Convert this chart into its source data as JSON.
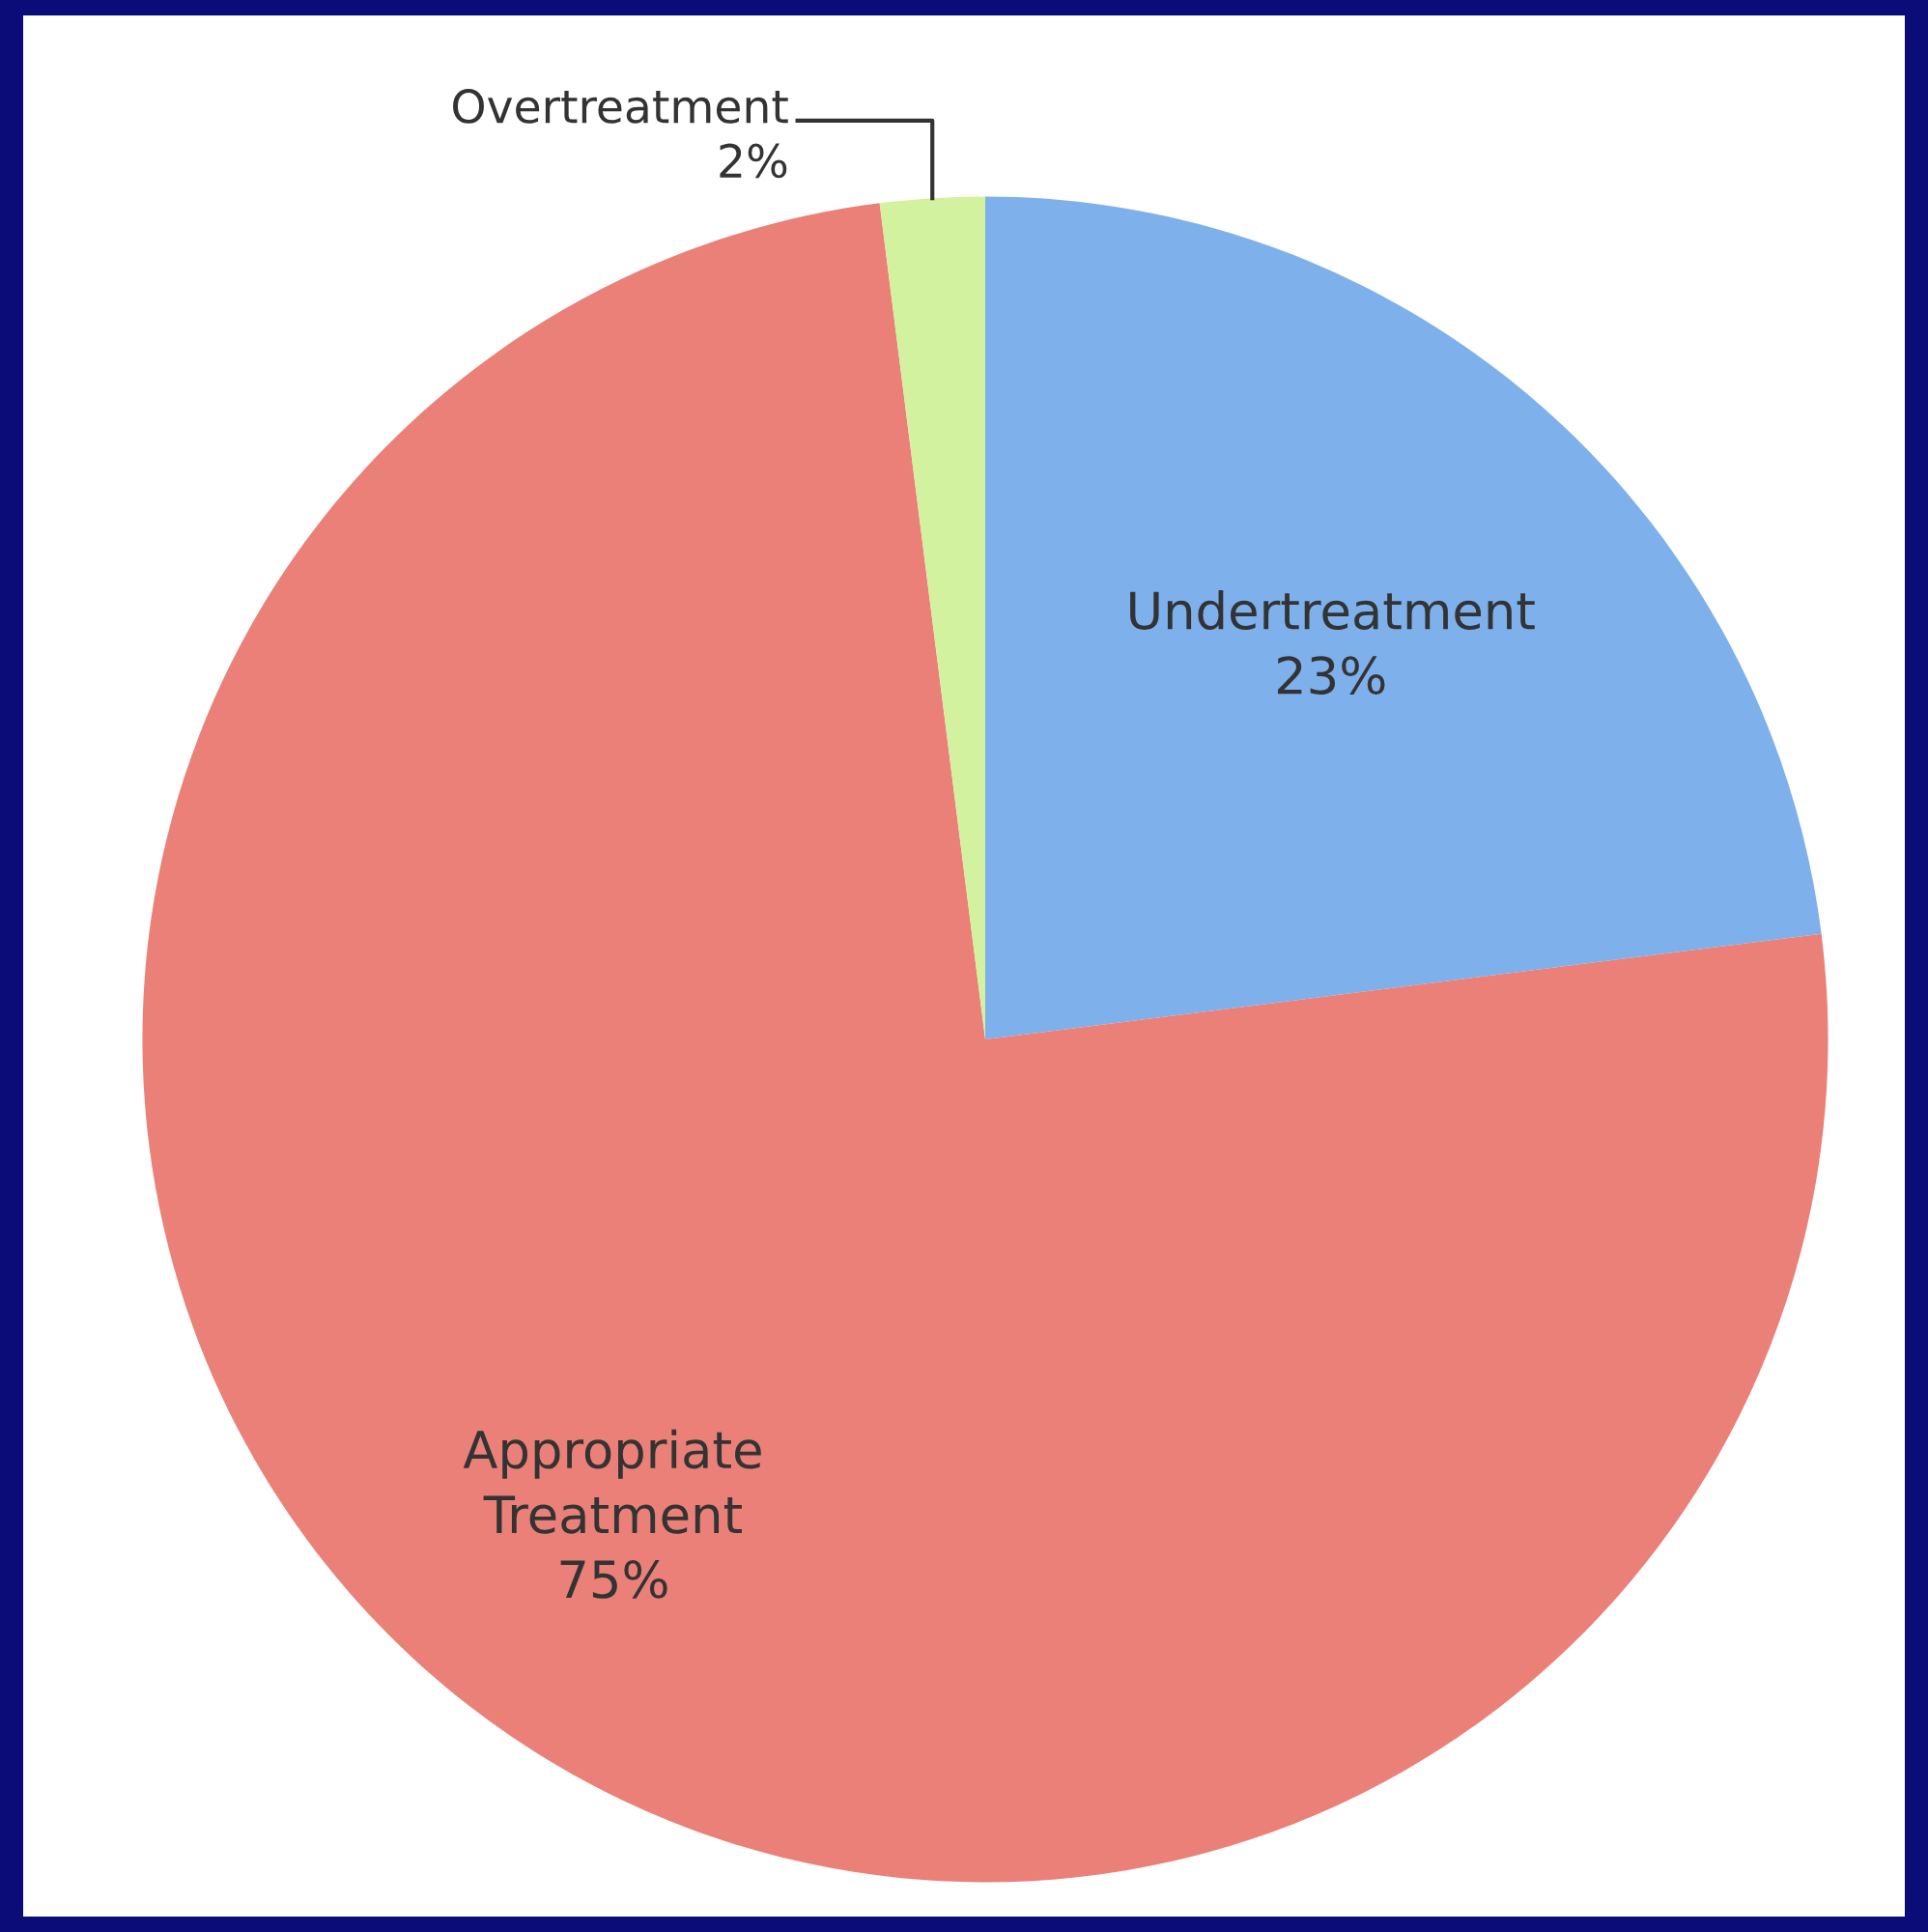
{
  "chart_data": {
    "type": "pie",
    "categories": [
      "Undertreatment",
      "Appropriate\nTreatment",
      "Overtreatment"
    ],
    "values": [
      23,
      75,
      2
    ],
    "colors": [
      "#7eb0ec",
      "#ea8078",
      "#d2f2a0"
    ],
    "value_labels": [
      "23%",
      "75%",
      "2%"
    ]
  }
}
